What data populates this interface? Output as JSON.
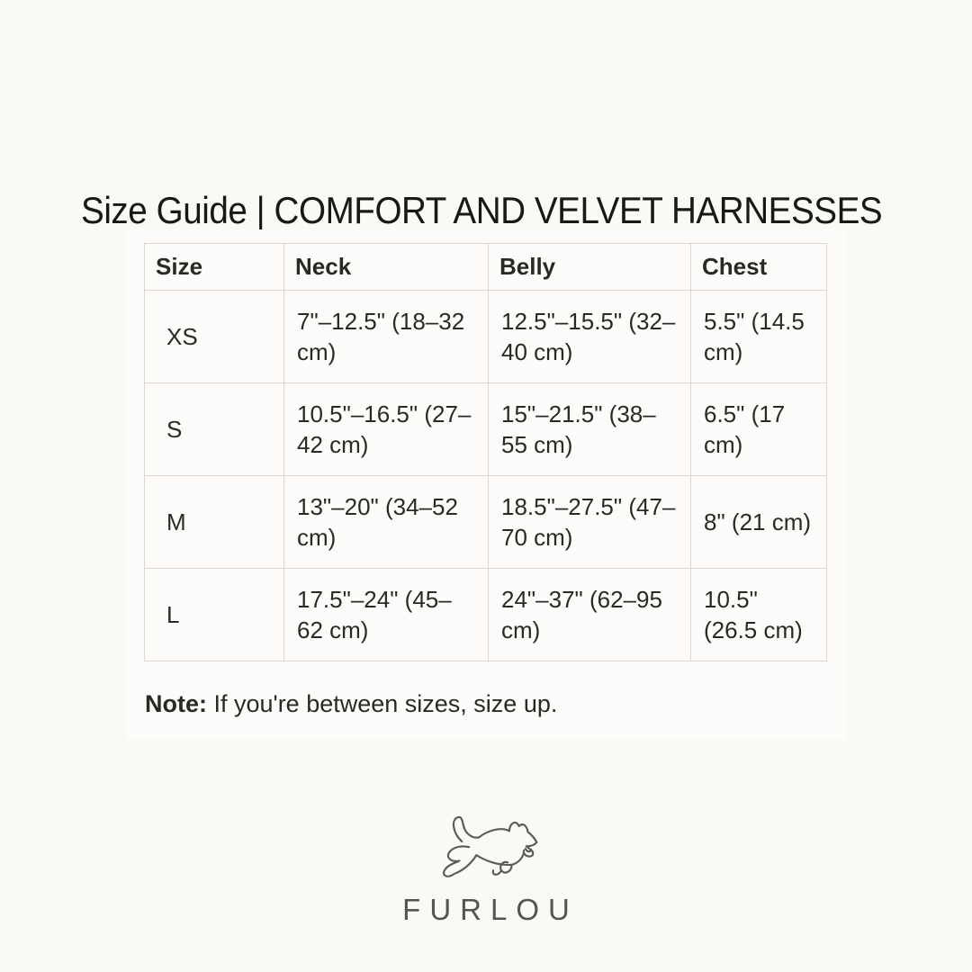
{
  "title": "Size Guide | COMFORT AND VELVET HARNESSES",
  "table": {
    "columns": [
      "Size",
      "Neck",
      "Belly",
      "Chest"
    ],
    "rows": [
      {
        "size": "XS",
        "neck": "7\"–12.5\" (18–32 cm)",
        "belly": "12.5\"–15.5\" (32–40 cm)",
        "chest": "5.5\" (14.5 cm)"
      },
      {
        "size": "S",
        "neck": "10.5\"–16.5\" (27–42 cm)",
        "belly": "15\"–21.5\" (38–55 cm)",
        "chest": "6.5\" (17 cm)"
      },
      {
        "size": "M",
        "neck": "13\"–20\" (34–52 cm)",
        "belly": "18.5\"–27.5\" (47–70 cm)",
        "chest": "8\" (21 cm)"
      },
      {
        "size": "L",
        "neck": "17.5\"–24\" (45–62 cm)",
        "belly": "24\"–37\" (62–95 cm)",
        "chest": "10.5\" (26.5 cm)"
      }
    ]
  },
  "note": {
    "label": "Note:",
    "text": " If you're between sizes, size up."
  },
  "brand": {
    "name": "FURLOU"
  },
  "icons": {
    "logo": "leaping-dog-line-art"
  },
  "colors": {
    "page_bg": "#faf9f6",
    "panel_bg": "#fdfcfa",
    "border": "#dbd8d3",
    "text": "#2a2925",
    "title": "#191817",
    "brand": "#55544e"
  }
}
